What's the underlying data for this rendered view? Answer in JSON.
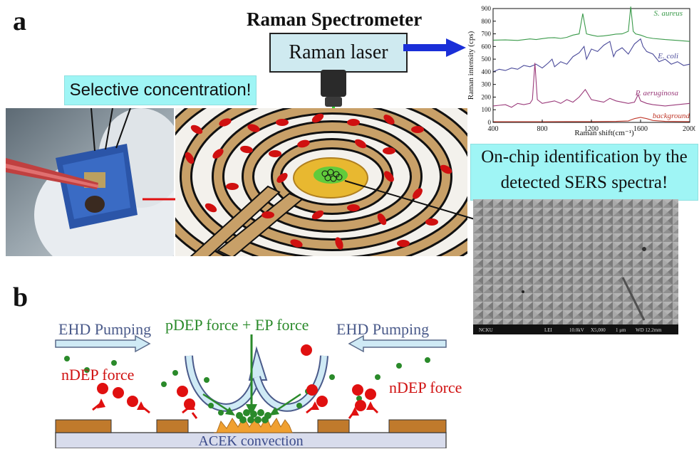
{
  "panel_a_label": "a",
  "panel_b_label": "b",
  "title": "Raman Spectrometer",
  "laser_label": "Raman laser",
  "selective_label": "Selective concentration!",
  "onchip_line1": "On-chip identification by the",
  "onchip_line2": "detected SERS spectra!",
  "sem_footer": {
    "f1": "NCKU",
    "f2": "LEI",
    "f3": "10.0kV",
    "f4": "X5,000",
    "f5": "1 μm",
    "f6": "WD 12.2mm"
  },
  "panel_b": {
    "ehd_left": "EHD Pumping",
    "ehd_right": "EHD Pumping",
    "pdep": "pDEP force + EP force",
    "ndep_left": "nDEP force",
    "ndep_right": "nDEP force",
    "acek": "ACEK convection"
  },
  "chart_data": {
    "type": "line",
    "xlabel": "Raman shift(cm⁻¹)",
    "ylabel": "Raman intensity (cps)",
    "xlim": [
      400,
      2000
    ],
    "ylim": [
      0,
      900
    ],
    "xticks": [
      400,
      800,
      1200,
      1600,
      2000
    ],
    "yticks": [
      0,
      100,
      200,
      300,
      400,
      500,
      600,
      700,
      800,
      900
    ],
    "series": [
      {
        "name": "S. aureus",
        "color": "#3a9a4a",
        "x": [
          400,
          500,
          600,
          700,
          750,
          800,
          850,
          900,
          950,
          1000,
          1050,
          1100,
          1130,
          1160,
          1200,
          1250,
          1300,
          1350,
          1400,
          1450,
          1500,
          1520,
          1540,
          1560,
          1600,
          1650,
          1700,
          1800,
          1900,
          2000
        ],
        "y": [
          650,
          652,
          648,
          660,
          655,
          662,
          668,
          670,
          664,
          672,
          690,
          700,
          860,
          700,
          690,
          680,
          684,
          690,
          698,
          700,
          720,
          915,
          720,
          700,
          690,
          672,
          664,
          655,
          648,
          640
        ]
      },
      {
        "name": "E. coli",
        "color": "#4a4a9a",
        "x": [
          400,
          450,
          500,
          550,
          600,
          650,
          700,
          750,
          800,
          850,
          880,
          900,
          950,
          1000,
          1050,
          1100,
          1140,
          1160,
          1200,
          1250,
          1300,
          1350,
          1380,
          1400,
          1450,
          1500,
          1550,
          1600,
          1620,
          1650,
          1700,
          1750,
          1800,
          1850,
          1900,
          1950,
          2000
        ],
        "y": [
          400,
          420,
          410,
          430,
          420,
          450,
          440,
          460,
          430,
          470,
          500,
          440,
          480,
          460,
          520,
          550,
          600,
          500,
          580,
          560,
          610,
          640,
          520,
          560,
          590,
          540,
          620,
          660,
          600,
          560,
          540,
          480,
          500,
          460,
          480,
          450,
          460
        ]
      },
      {
        "name": "P. aeruginosa",
        "color": "#9a3a7a",
        "x": [
          400,
          450,
          500,
          550,
          600,
          650,
          700,
          720,
          740,
          760,
          800,
          850,
          900,
          950,
          1000,
          1050,
          1100,
          1150,
          1200,
          1250,
          1300,
          1350,
          1400,
          1450,
          1500,
          1550,
          1580,
          1600,
          1650,
          1700,
          1800,
          1900,
          2000
        ],
        "y": [
          130,
          135,
          140,
          120,
          150,
          140,
          150,
          180,
          470,
          180,
          150,
          160,
          170,
          150,
          180,
          160,
          200,
          260,
          180,
          170,
          160,
          190,
          170,
          160,
          150,
          160,
          220,
          170,
          150,
          140,
          130,
          140,
          150
        ]
      },
      {
        "name": "background",
        "color": "#c0392b",
        "x": [
          400,
          600,
          800,
          1000,
          1200,
          1400,
          1500,
          1550,
          1600,
          1650,
          1700,
          1800,
          2000
        ],
        "y": [
          5,
          5,
          5,
          6,
          6,
          8,
          12,
          30,
          40,
          30,
          15,
          8,
          6
        ]
      }
    ]
  }
}
